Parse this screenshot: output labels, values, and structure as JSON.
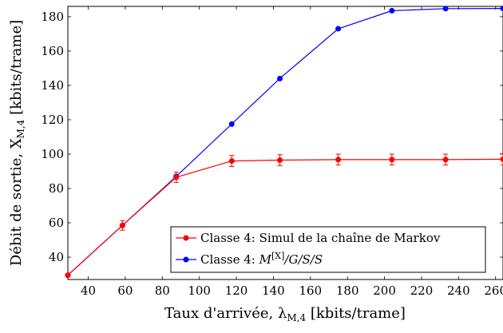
{
  "chart_data": {
    "type": "line",
    "xlabel": "Taux d'arrivée, λ",
    "xlabel_sub": "M,4",
    "xlabel_unit": " [kbits/trame]",
    "ylabel": "Débit de sortie, X",
    "ylabel_sub": "M,4",
    "ylabel_unit": " [kbits/trame]",
    "xlim": [
      29,
      264
    ],
    "ylim": [
      27,
      186
    ],
    "xticks": [
      40,
      60,
      80,
      100,
      120,
      140,
      160,
      180,
      200,
      220,
      240,
      260
    ],
    "yticks": [
      40,
      60,
      80,
      100,
      120,
      140,
      160,
      180
    ],
    "grid": false,
    "legend_position": "bottom-right",
    "series": [
      {
        "name": "Classe 4: Simul de la chaîne de Markov",
        "color": "#ff0000",
        "marker": "circle",
        "error_bars": true,
        "x": [
          29,
          58.5,
          87.5,
          117.5,
          143.5,
          175,
          204,
          233,
          264
        ],
        "y": [
          29.5,
          58.5,
          86.5,
          96,
          96.5,
          96.8,
          96.8,
          96.8,
          97
        ],
        "err": [
          0.8,
          2.8,
          3,
          3.2,
          3.2,
          3.2,
          3.2,
          3.2,
          3.2
        ]
      },
      {
        "name_parts": [
          "Classe 4: ",
          "M",
          "[X]",
          "/G/S/S"
        ],
        "color": "#0000ff",
        "marker": "circle",
        "error_bars": false,
        "x": [
          29,
          58.5,
          87.5,
          117.5,
          143.5,
          175,
          204,
          233,
          264
        ],
        "y": [
          29.5,
          58.5,
          87,
          117.5,
          144,
          173,
          183.5,
          184.7,
          184.8
        ]
      }
    ]
  }
}
